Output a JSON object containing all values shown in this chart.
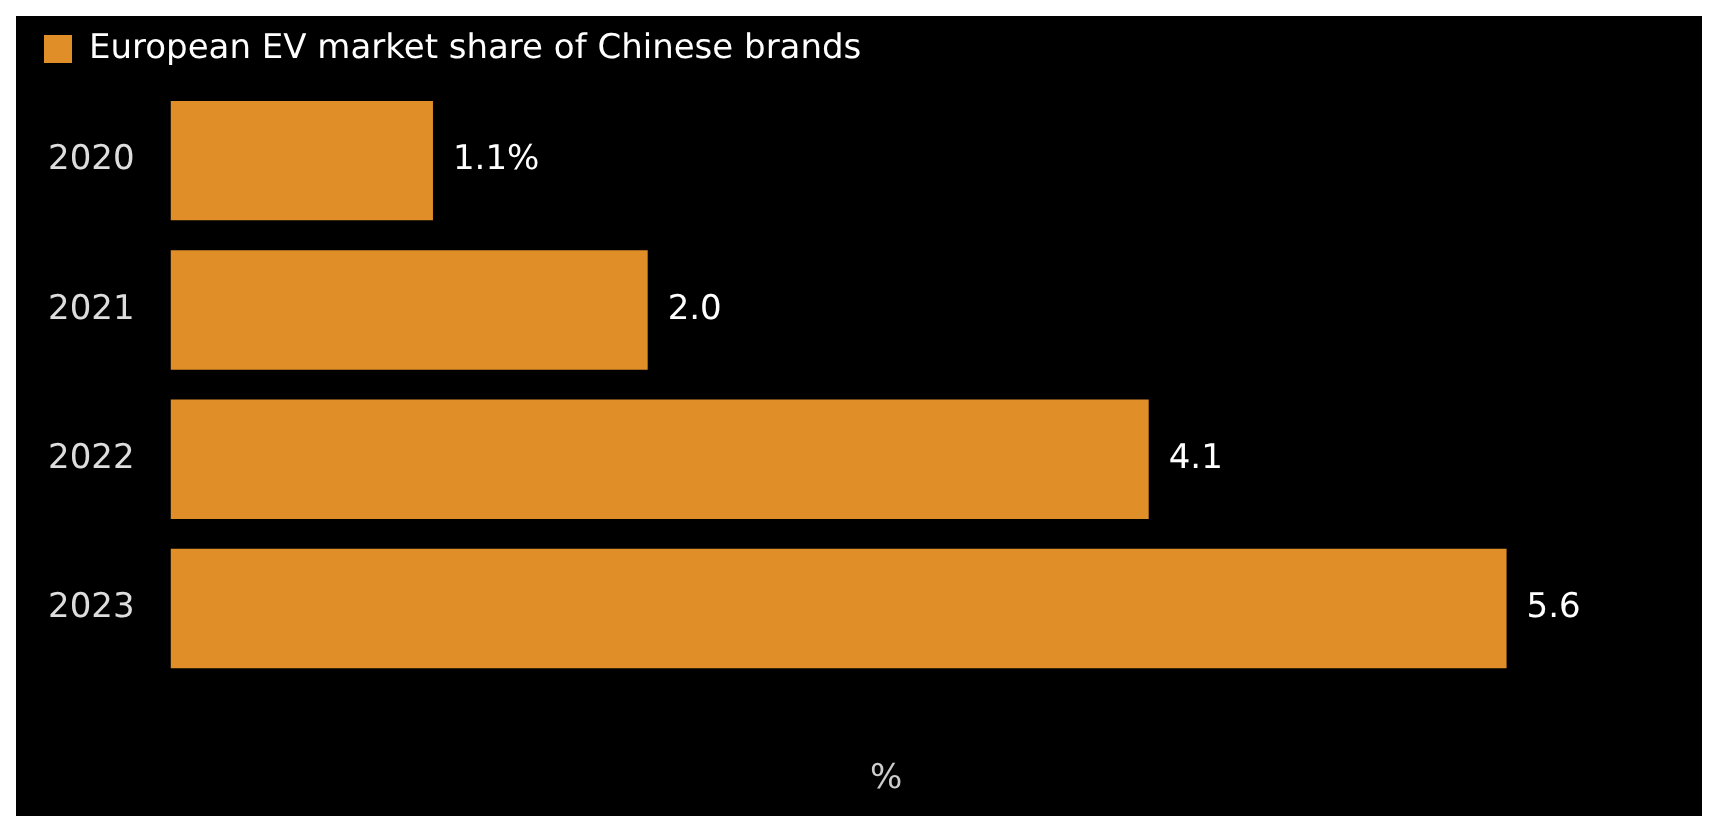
{
  "chart_data": {
    "type": "bar",
    "orientation": "horizontal",
    "categories": [
      "2020",
      "2021",
      "2022",
      "2023"
    ],
    "series": [
      {
        "name": "European EV market share of Chinese brands",
        "color": "#e08e28",
        "values": [
          1.1,
          2.0,
          4.1,
          5.6
        ],
        "value_labels": [
          "1.1%",
          "2.0",
          "4.1",
          "5.6"
        ]
      }
    ],
    "xlabel": "%",
    "legend": "top left",
    "grid": false
  }
}
